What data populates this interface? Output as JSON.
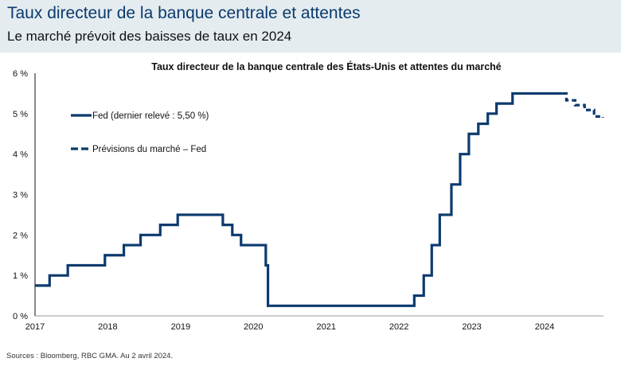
{
  "header": {
    "title": "Taux directeur de la banque centrale et attentes",
    "subtitle": "Le marché prévoit des baisses de taux en 2024"
  },
  "footer": {
    "source": "Sources : Bloomberg, RBC GMA. Au 2 avril 2024."
  },
  "colors": {
    "series": "#0b3a6e",
    "header_bg": "#e4ecf0",
    "title": "#0b3a6e"
  },
  "chart_data": {
    "type": "line",
    "title": "Taux directeur de la banque centrale des États-Unis et attentes du marché",
    "xlabel": "",
    "ylabel": "",
    "xlim": [
      2017,
      2024.8
    ],
    "ylim": [
      0,
      6
    ],
    "x_ticks": [
      "2017",
      "2018",
      "2019",
      "2020",
      "2021",
      "2022",
      "2023",
      "2024"
    ],
    "x_tick_values": [
      2017,
      2018,
      2019,
      2020,
      2021,
      2022,
      2023,
      2024
    ],
    "y_ticks": [
      "0 %",
      "1 %",
      "2 %",
      "3 %",
      "4 %",
      "5 %",
      "6 %"
    ],
    "y_tick_values": [
      0,
      1,
      2,
      3,
      4,
      5,
      6
    ],
    "grid": false,
    "legend_position": "top-left",
    "series": [
      {
        "name": "Fed (dernier relevé : 5,50 %)",
        "style": "solid-step",
        "points": [
          [
            2017.0,
            0.75
          ],
          [
            2017.2,
            1.0
          ],
          [
            2017.45,
            1.25
          ],
          [
            2017.96,
            1.5
          ],
          [
            2018.22,
            1.75
          ],
          [
            2018.45,
            2.0
          ],
          [
            2018.72,
            2.25
          ],
          [
            2018.96,
            2.5
          ],
          [
            2019.58,
            2.25
          ],
          [
            2019.71,
            2.0
          ],
          [
            2019.83,
            1.75
          ],
          [
            2020.17,
            1.25
          ],
          [
            2020.2,
            0.25
          ],
          [
            2022.21,
            0.5
          ],
          [
            2022.34,
            1.0
          ],
          [
            2022.45,
            1.75
          ],
          [
            2022.56,
            2.5
          ],
          [
            2022.72,
            3.25
          ],
          [
            2022.84,
            4.0
          ],
          [
            2022.96,
            4.5
          ],
          [
            2023.09,
            4.75
          ],
          [
            2023.22,
            5.0
          ],
          [
            2023.34,
            5.25
          ],
          [
            2023.56,
            5.5
          ],
          [
            2024.25,
            5.5
          ]
        ]
      },
      {
        "name": "Prévisions du marché – Fed",
        "style": "dashed-step",
        "points": [
          [
            2024.25,
            5.5
          ],
          [
            2024.3,
            5.33
          ],
          [
            2024.42,
            5.21
          ],
          [
            2024.55,
            5.09
          ],
          [
            2024.68,
            4.93
          ],
          [
            2024.8,
            4.9
          ]
        ]
      }
    ]
  }
}
